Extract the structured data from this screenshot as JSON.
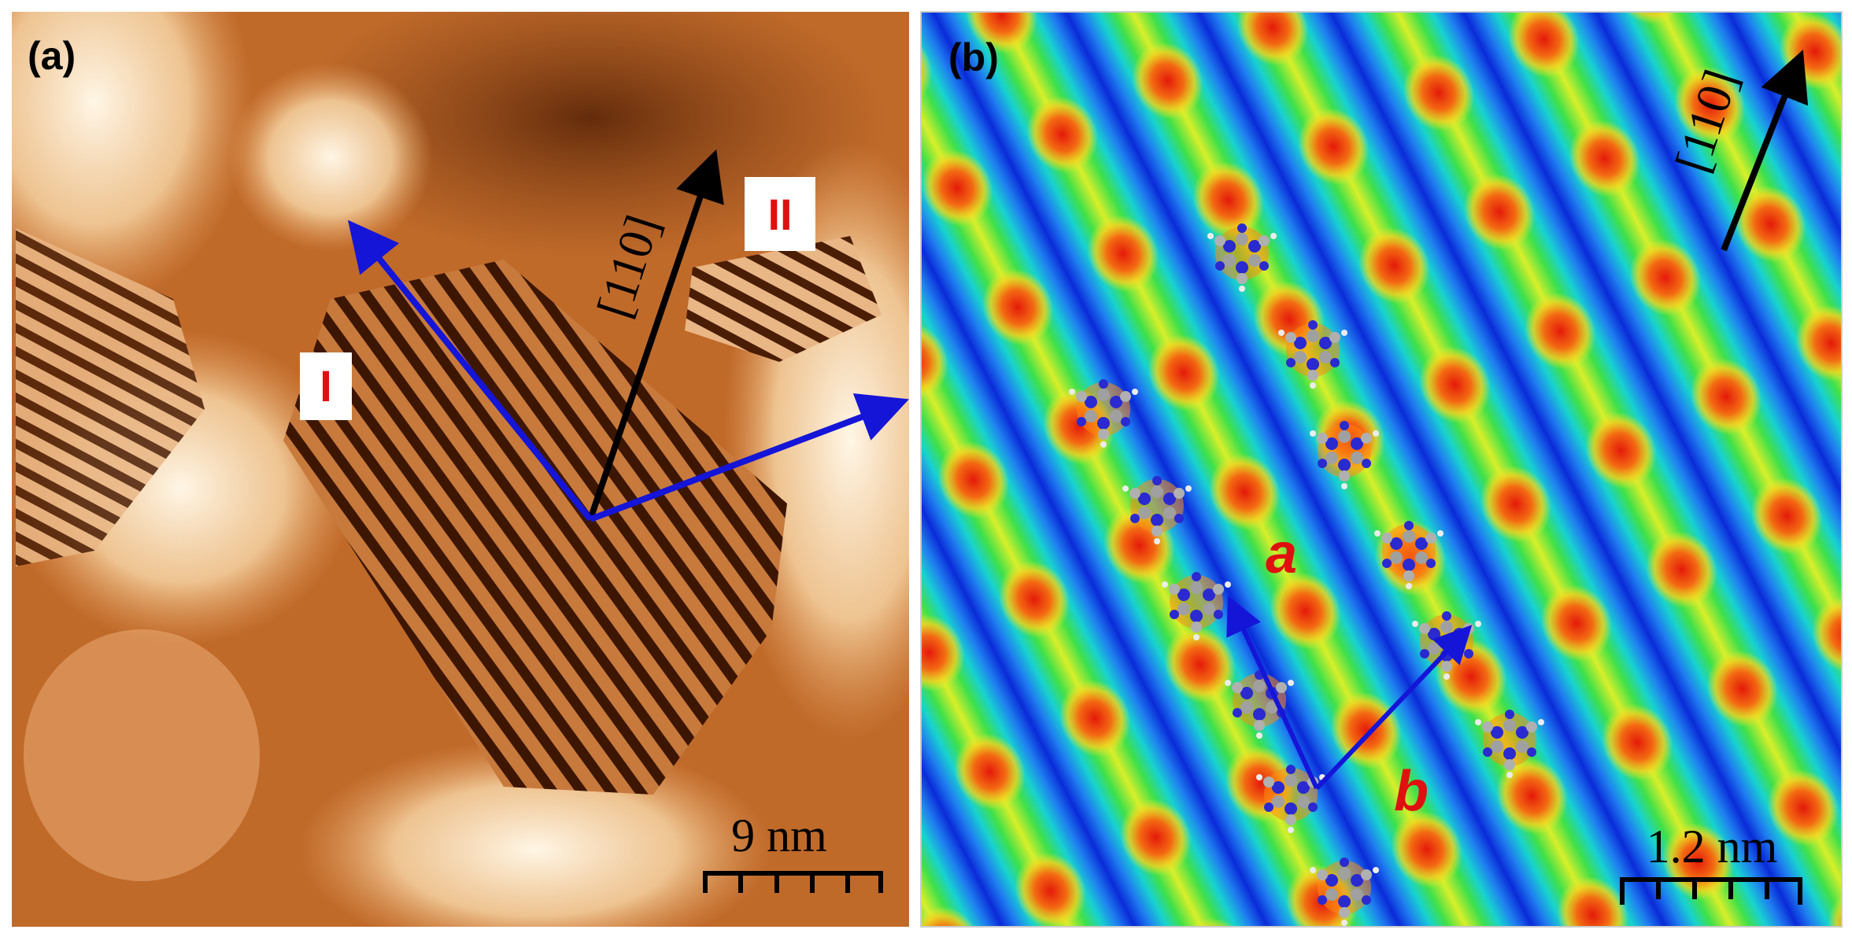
{
  "panels": [
    {
      "label": "(a)",
      "direction": "[110]",
      "domains": [
        "I",
        "II"
      ],
      "scale_bar": "9 nm"
    },
    {
      "label": "(b)",
      "direction": "[110]",
      "vectors": [
        "a",
        "b"
      ],
      "scale_bar": "1.2 nm"
    }
  ]
}
